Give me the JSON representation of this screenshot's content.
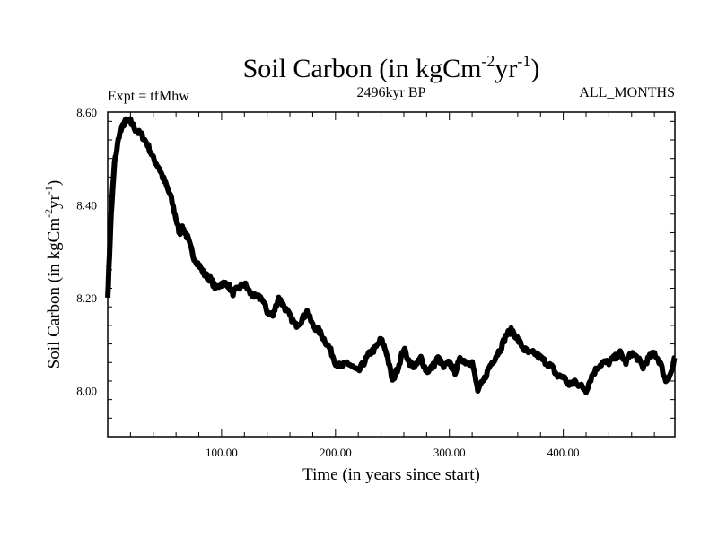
{
  "chart_data": {
    "type": "line",
    "title": "Soil Carbon (in kgCm",
    "title_sup1": "-2",
    "title_mid": "yr",
    "title_sup2": "-1",
    "title_end": ")",
    "subtitle_left": "Expt = tfMhw",
    "subtitle_center": "2496kyr BP",
    "subtitle_right": "ALL_MONTHS",
    "xlabel": "Time (in years since start)",
    "ylabel": "Soil Carbon (in kgCm",
    "ylabel_sup1": "-2",
    "ylabel_mid": "yr",
    "ylabel_sup2": "-1",
    "ylabel_end": ")",
    "xlim": [
      0,
      498
    ],
    "ylim": [
      7.9,
      8.6
    ],
    "x_ticks": [
      100,
      200,
      300,
      400
    ],
    "x_tick_labels": [
      "100.00",
      "200.00",
      "300.00",
      "400.00"
    ],
    "y_ticks": [
      8.0,
      8.2,
      8.4,
      8.6
    ],
    "y_tick_labels": [
      "8.00",
      "8.20",
      "8.40",
      "8.60"
    ],
    "line_color": "#000000",
    "series": [
      {
        "name": "Soil Carbon",
        "x": [
          0,
          3,
          6,
          10,
          15,
          20,
          25,
          30,
          35,
          40,
          45,
          50,
          55,
          60,
          63,
          66,
          70,
          75,
          80,
          85,
          90,
          95,
          100,
          105,
          110,
          115,
          120,
          125,
          130,
          135,
          140,
          145,
          150,
          155,
          160,
          165,
          170,
          175,
          180,
          185,
          190,
          195,
          200,
          205,
          210,
          215,
          220,
          225,
          230,
          235,
          240,
          245,
          250,
          255,
          260,
          265,
          270,
          275,
          280,
          285,
          290,
          295,
          300,
          305,
          310,
          315,
          320,
          325,
          330,
          335,
          340,
          345,
          350,
          355,
          360,
          365,
          370,
          375,
          380,
          385,
          390,
          395,
          400,
          405,
          410,
          415,
          420,
          425,
          430,
          435,
          440,
          445,
          450,
          455,
          460,
          465,
          470,
          475,
          480,
          485,
          490,
          495,
          498
        ],
        "values": [
          8.2,
          8.38,
          8.49,
          8.55,
          8.58,
          8.58,
          8.56,
          8.55,
          8.53,
          8.5,
          8.48,
          8.45,
          8.42,
          8.37,
          8.34,
          8.35,
          8.33,
          8.29,
          8.27,
          8.25,
          8.24,
          8.22,
          8.23,
          8.23,
          8.21,
          8.22,
          8.23,
          8.21,
          8.2,
          8.2,
          8.17,
          8.16,
          8.2,
          8.18,
          8.16,
          8.14,
          8.15,
          8.17,
          8.14,
          8.13,
          8.11,
          8.09,
          8.06,
          8.05,
          8.06,
          8.05,
          8.04,
          8.06,
          8.08,
          8.09,
          8.11,
          8.08,
          8.02,
          8.05,
          8.09,
          8.06,
          8.05,
          8.07,
          8.04,
          8.05,
          8.07,
          8.05,
          8.06,
          8.04,
          8.07,
          8.06,
          8.06,
          8.0,
          8.02,
          8.05,
          8.07,
          8.09,
          8.12,
          8.13,
          8.11,
          8.09,
          8.08,
          8.08,
          8.07,
          8.06,
          8.05,
          8.03,
          8.03,
          8.01,
          8.02,
          8.01,
          8.0,
          8.03,
          8.05,
          8.06,
          8.06,
          8.07,
          8.08,
          8.06,
          8.08,
          8.07,
          8.05,
          8.07,
          8.08,
          8.06,
          8.02,
          8.04,
          8.07
        ]
      }
    ]
  }
}
